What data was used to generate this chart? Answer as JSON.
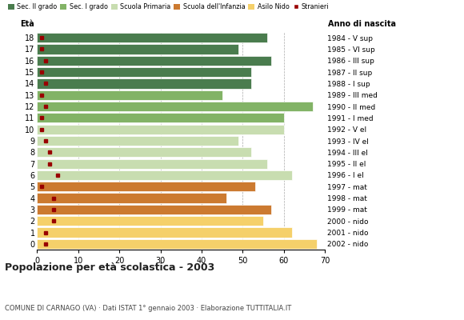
{
  "ages": [
    18,
    17,
    16,
    15,
    14,
    13,
    12,
    11,
    10,
    9,
    8,
    7,
    6,
    5,
    4,
    3,
    2,
    1,
    0
  ],
  "years": [
    "1984 - V sup",
    "1985 - VI sup",
    "1986 - III sup",
    "1987 - II sup",
    "1988 - I sup",
    "1989 - III med",
    "1990 - II med",
    "1991 - I med",
    "1992 - V el",
    "1993 - IV el",
    "1994 - III el",
    "1995 - II el",
    "1996 - I el",
    "1997 - mat",
    "1998 - mat",
    "1999 - mat",
    "2000 - nido",
    "2001 - nido",
    "2002 - nido"
  ],
  "values": [
    56,
    49,
    57,
    52,
    52,
    45,
    67,
    60,
    60,
    49,
    52,
    56,
    62,
    53,
    46,
    57,
    55,
    62,
    68
  ],
  "stranieri": [
    1,
    1,
    2,
    1,
    2,
    1,
    2,
    1,
    1,
    2,
    3,
    3,
    5,
    1,
    4,
    4,
    4,
    2,
    2
  ],
  "categories": {
    "sec2": [
      18,
      17,
      16,
      15,
      14
    ],
    "sec1": [
      13,
      12,
      11
    ],
    "primaria": [
      10,
      9,
      8,
      7,
      6
    ],
    "infanzia": [
      5,
      4,
      3
    ],
    "nido": [
      2,
      1,
      0
    ]
  },
  "colors": {
    "sec2": "#4a7c4e",
    "sec1": "#82b366",
    "primaria": "#c8ddb0",
    "infanzia": "#cc7a30",
    "nido": "#f5d06a",
    "stranieri": "#990000"
  },
  "legend_labels": [
    "Sec. II grado",
    "Sec. I grado",
    "Scuola Primaria",
    "Scuola dell'Infanzia",
    "Asilo Nido",
    "Stranieri"
  ],
  "title": "Popolazione per età scolastica - 2003",
  "subtitle": "COMUNE DI CARNAGO (VA) · Dati ISTAT 1° gennaio 2003 · Elaborazione TUTTITALIA.IT",
  "xlabel_eta": "Età",
  "xlabel_anno": "Anno di nascita",
  "xlim": [
    0,
    70
  ],
  "xticks": [
    0,
    10,
    20,
    30,
    40,
    50,
    60,
    70
  ],
  "bg_color": "#ffffff",
  "bar_height": 0.85
}
